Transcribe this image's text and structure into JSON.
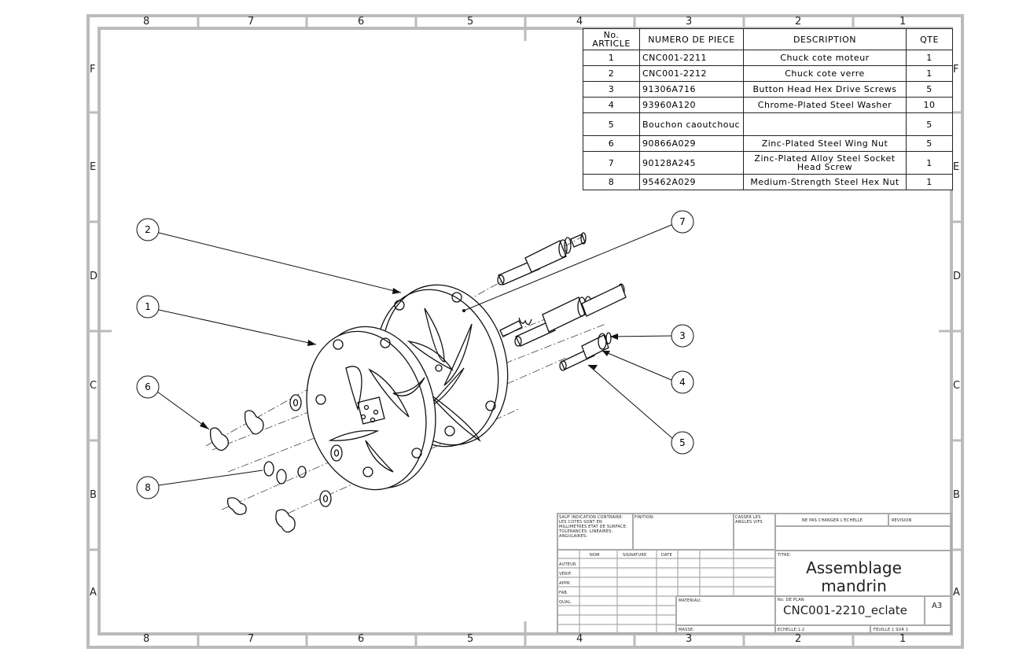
{
  "zones": {
    "columns": [
      "8",
      "7",
      "6",
      "5",
      "4",
      "3",
      "2",
      "1"
    ],
    "rows": [
      "F",
      "E",
      "D",
      "C",
      "B",
      "A"
    ]
  },
  "bom": {
    "headers": {
      "item_no": "No. ARTICLE",
      "part_number": "NUMERO DE PIECE",
      "description": "DESCRIPTION",
      "qty": "QTE"
    },
    "rows": [
      {
        "item": "1",
        "part": "CNC001-2211",
        "desc": "Chuck cote moteur",
        "qty": "1"
      },
      {
        "item": "2",
        "part": "CNC001-2212",
        "desc": "Chuck cote verre",
        "qty": "1"
      },
      {
        "item": "3",
        "part": "91306A716",
        "desc": "Button Head Hex Drive Screws",
        "qty": "5"
      },
      {
        "item": "4",
        "part": "93960A120",
        "desc": "Chrome-Plated Steel Washer",
        "qty": "10"
      },
      {
        "item": "5",
        "part": "Bouchon caoutchouc",
        "desc": "",
        "qty": "5"
      },
      {
        "item": "6",
        "part": "90866A029",
        "desc": "Zinc-Plated Steel Wing Nut",
        "qty": "5"
      },
      {
        "item": "7",
        "part": "90128A245",
        "desc": "Zinc-Plated Alloy Steel Socket Head Screw",
        "qty": "1"
      },
      {
        "item": "8",
        "part": "95462A029",
        "desc": "Medium-Strength Steel Hex Nut",
        "qty": "1"
      }
    ]
  },
  "balloons": {
    "b1": "1",
    "b2": "2",
    "b3": "3",
    "b4": "4",
    "b5": "5",
    "b6": "6",
    "b7": "7",
    "b8": "8"
  },
  "title_block": {
    "title_line1": "Assemblage",
    "title_line2": "mandrin",
    "drawing_number": "CNC001-2210_eclate",
    "sheet_size": "A3",
    "note_default": "SAUF INDICATION CONTRAIRE: LES COTES SONT EN MILLIMETRES ETAT DE SURFACE: TOLERANCES: LINEAIRES: ANGULAIRES:",
    "finish": "FINITION:",
    "break_edges": "CASSER LES ANGLES VIFS",
    "no_scale": "NE PAS CHANGER L'ECHELLE",
    "revision": "REVISION",
    "name": "NOM",
    "signature": "SIGNATURE",
    "date": "DATE",
    "author": "AUTEUR",
    "verif": "VERIF.",
    "appr": "APPR.",
    "fab": "FAB.",
    "qual": "QUAL.",
    "titre": "TITRE:",
    "material": "MATERIAU:",
    "plan_no": "No. DE PLAN",
    "mass": "MASSE:",
    "scale": "ECHELLE:1:2",
    "sheet": "FEUILLE 1 SUR 1"
  }
}
